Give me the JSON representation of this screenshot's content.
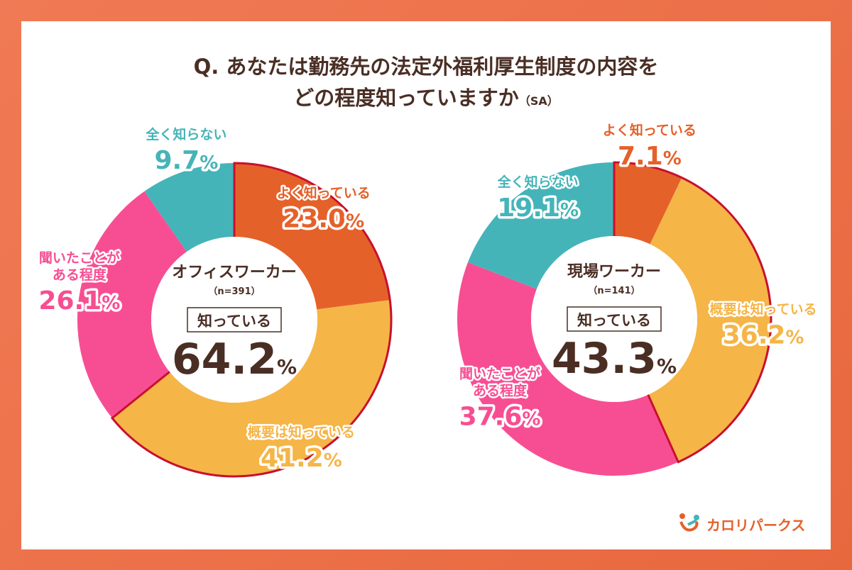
{
  "title": {
    "line1": "Q. あなたは勤務先の法定外福利厚生制度の内容を",
    "line2": "どの程度知っていますか",
    "tag": "（SA）"
  },
  "colors": {
    "よく知っている": "#e5612a",
    "概要は知っている": "#f5b547",
    "聞いたことがある程度": "#f74e93",
    "全く知らない": "#45b4b9",
    "outline": "#c8102e",
    "text": "#4a2e24"
  },
  "logo": {
    "text": "カロリパークス"
  },
  "chart_data": [
    {
      "type": "pie",
      "donut": true,
      "group": "オフィスワーカー",
      "n": "（n=391）",
      "summary_label": "知っている",
      "summary_value": "64.2",
      "summary_unit": "%",
      "categories": [
        "よく知っている",
        "概要は知っている",
        "聞いたことがある程度",
        "全く知らない"
      ],
      "label_lines": [
        [
          "よく知っている"
        ],
        [
          "概要は知っている"
        ],
        [
          "聞いたことが",
          "ある程度"
        ],
        [
          "全く知らない"
        ]
      ],
      "values": [
        23.0,
        41.2,
        26.1,
        9.7
      ]
    },
    {
      "type": "pie",
      "donut": true,
      "group": "現場ワーカー",
      "n": "（n=141）",
      "summary_label": "知っている",
      "summary_value": "43.3",
      "summary_unit": "%",
      "categories": [
        "よく知っている",
        "概要は知っている",
        "聞いたことがある程度",
        "全く知らない"
      ],
      "label_lines": [
        [
          "よく知っている"
        ],
        [
          "概要は知っている"
        ],
        [
          "聞いたことが",
          "ある程度"
        ],
        [
          "全く知らない"
        ]
      ],
      "values": [
        7.1,
        36.2,
        37.6,
        19.1
      ]
    }
  ]
}
